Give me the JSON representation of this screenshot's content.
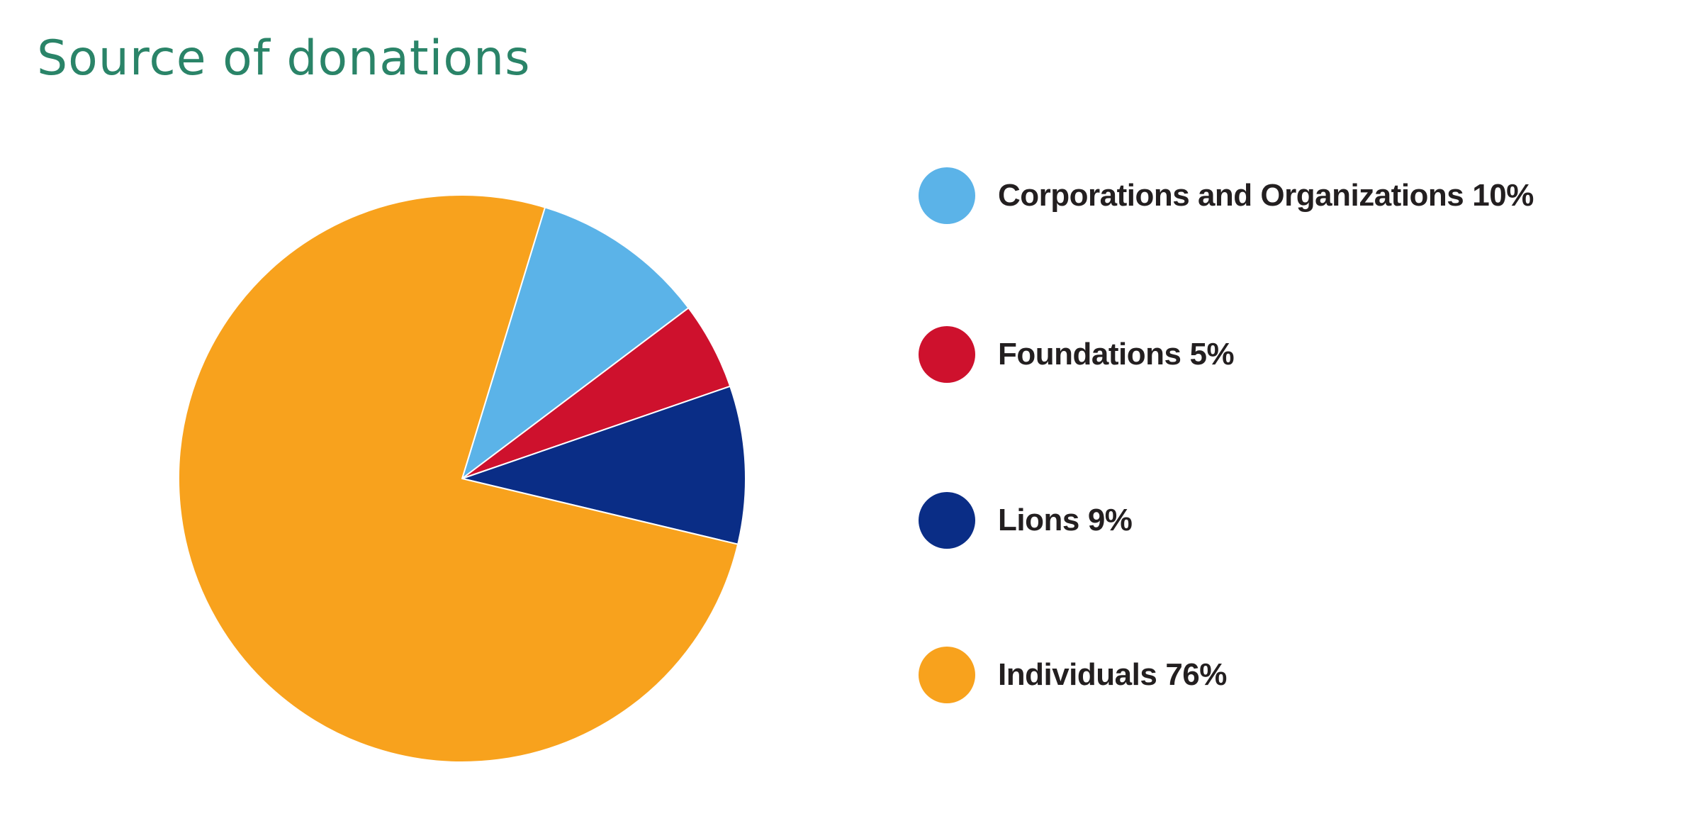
{
  "title": "Source of donations",
  "chart_data": {
    "type": "pie",
    "title": "Source of donations",
    "start_angle_deg": 17,
    "slices": [
      {
        "label": "Corporations and Organizations",
        "value": 10,
        "value_label": "10%",
        "color": "#5bb3e8"
      },
      {
        "label": "Foundations",
        "value": 5,
        "value_label": "5%",
        "color": "#ce112d"
      },
      {
        "label": "Lions",
        "value": 9,
        "value_label": "9%",
        "color": "#0a2d86"
      },
      {
        "label": "Individuals",
        "value": 76,
        "value_label": "76%",
        "color": "#f8a21d"
      }
    ],
    "legend_position": "right"
  }
}
